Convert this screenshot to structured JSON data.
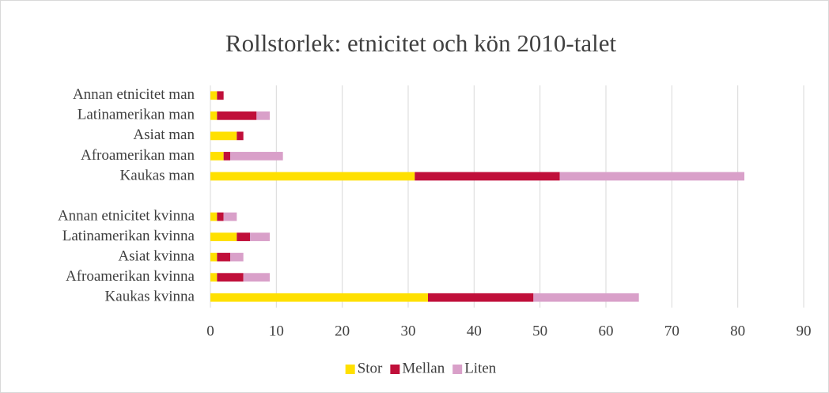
{
  "chart_data": {
    "type": "bar",
    "horizontal": true,
    "stacked": true,
    "title": "Rollstorlek: etnicitet och kön 2010-talet",
    "categories": [
      "Annan etnicitet man",
      "Latinamerikan man",
      "Asiat man",
      "Afroamerikan man",
      "Kaukas man",
      null,
      "Annan etnicitet kvinna",
      "Latinamerikan kvinna",
      "Asiat kvinna",
      "Afroamerikan kvinna",
      "Kaukas kvinna"
    ],
    "series": [
      {
        "name": "Stor",
        "color": "#FFE000",
        "values": [
          1,
          1,
          4,
          2,
          31,
          null,
          1,
          4,
          1,
          1,
          33
        ]
      },
      {
        "name": "Mellan",
        "color": "#C00F3A",
        "values": [
          1,
          6,
          1,
          1,
          22,
          null,
          1,
          2,
          2,
          4,
          16
        ]
      },
      {
        "name": "Liten",
        "color": "#D9A0C9",
        "values": [
          0,
          2,
          0,
          8,
          28,
          null,
          2,
          3,
          2,
          4,
          16
        ]
      }
    ],
    "xlim": [
      0,
      90
    ],
    "xticks": [
      0,
      10,
      20,
      30,
      40,
      50,
      60,
      70,
      80,
      90
    ],
    "grid": true,
    "legend": "bottom"
  }
}
